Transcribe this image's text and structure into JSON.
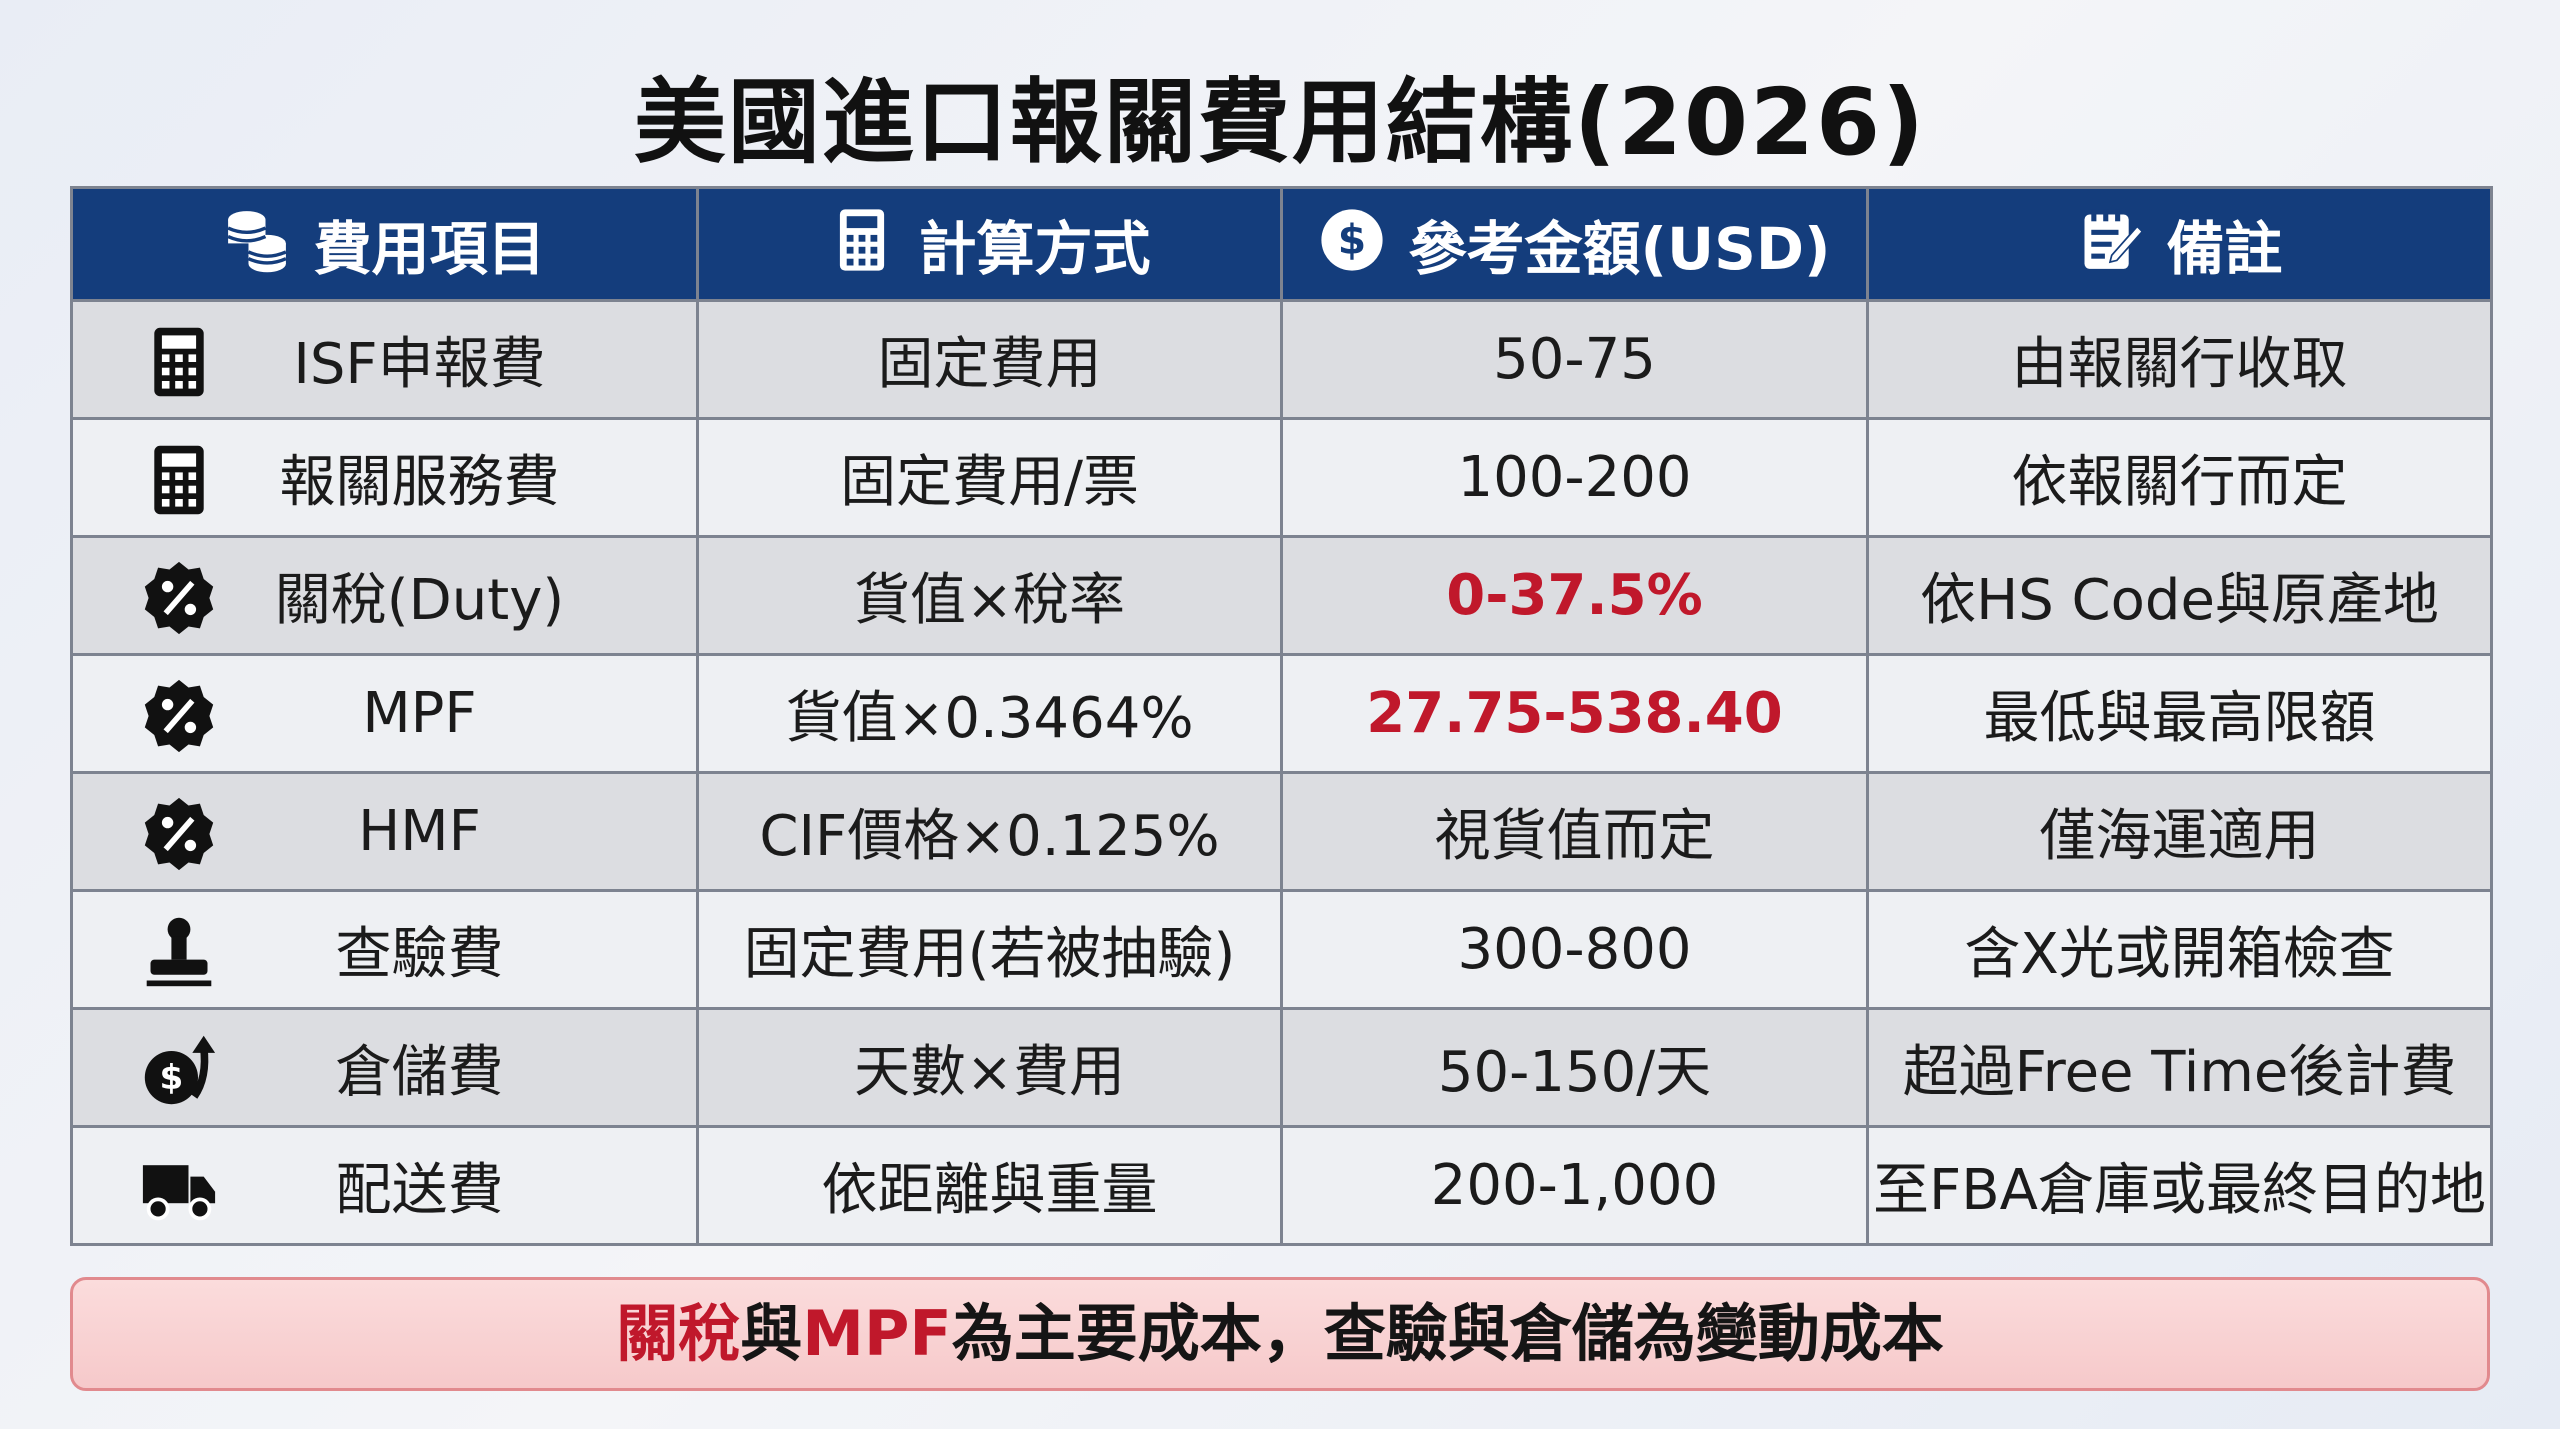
{
  "title": "美國進口報關費用結構(2026)",
  "table": {
    "headers": [
      "費用項目",
      "計算方式",
      "參考金額(USD)",
      "備註"
    ],
    "rows": [
      [
        "ISF申報費",
        "固定費用",
        "50-75",
        "由報關行收取"
      ],
      [
        "報關服務費",
        "固定費用/票",
        "100-200",
        "依報關行而定"
      ],
      [
        "關稅(Duty)",
        "貨值×稅率",
        "0-37.5%",
        "依HS Code與原產地"
      ],
      [
        "MPF",
        "貨值×0.3464%",
        "27.75-538.40",
        "最低與最高限額"
      ],
      [
        "HMF",
        "CIF價格×0.125%",
        "視貨值而定",
        "僅海運適用"
      ],
      [
        "查驗費",
        "固定費用(若被抽驗)",
        "300-800",
        "含X光或開箱檢查"
      ],
      [
        "倉儲費",
        "天數×費用",
        "50-150/天",
        "超過Free Time後計費"
      ],
      [
        "配送費",
        "依距離與重量",
        "200-1,000",
        "至FBA倉庫或最終目的地"
      ]
    ]
  },
  "footer": [
    "關稅",
    "與",
    "MPF",
    "為主要成本，查驗與倉儲為變動成本"
  ]
}
